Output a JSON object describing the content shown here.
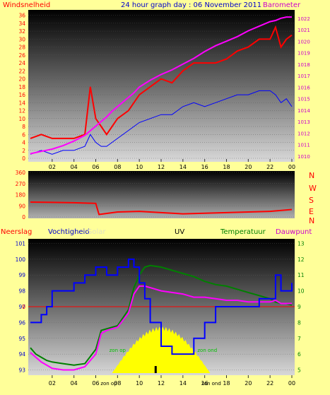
{
  "header": {
    "left_label": "Windsnelheid",
    "title": "24 hour graph day : 06 November 2011",
    "right_label": "Barometer"
  },
  "legend": {
    "rain": "Neerslag",
    "humidity": "Vochtigheid",
    "solar": "Solar",
    "uv": "UV",
    "temperature": "Temperatuur",
    "dewpoint": "Dauwpunt"
  },
  "x_labels": [
    "02",
    "04",
    "06",
    "08",
    "10",
    "12",
    "14",
    "16",
    "18",
    "20",
    "22",
    "00"
  ],
  "colors": {
    "background": "#ffff99",
    "wind_gust": "#ff0000",
    "wind_avg": "#0000ff",
    "barometer": "#ff00ff",
    "direction": "#ff0000",
    "humidity": "#0000ff",
    "temperature": "#008000",
    "dewpoint": "#ff00ff",
    "solar": "#ffff00",
    "uv": "#000000",
    "rain": "#ff0000"
  },
  "chart_data": [
    {
      "type": "line",
      "name": "wind-barometer",
      "title": "24 hour graph day : 06 November 2011",
      "ylabel_left": "Windsnelheid",
      "ylabel_right": "Barometer",
      "y_left_ticks": [
        0,
        2,
        4,
        6,
        8,
        10,
        12,
        14,
        16,
        18,
        20,
        22,
        24,
        26,
        28,
        30,
        32,
        34,
        36
      ],
      "y_right_ticks": [
        1010,
        1011,
        1012,
        1013,
        1014,
        1015,
        1016,
        1017,
        1018,
        1019,
        1020,
        1021,
        1022
      ],
      "ylim_left": [
        0,
        37
      ],
      "ylim_right": [
        1009.8,
        1022.6
      ],
      "x_hours": [
        0,
        1,
        2,
        3,
        4,
        5,
        5.5,
        6,
        6.5,
        7,
        7.5,
        8,
        9,
        9.5,
        10,
        11,
        12,
        13,
        14,
        15,
        16,
        17,
        18,
        19,
        20,
        21,
        22,
        22.5,
        23,
        23.5,
        24
      ],
      "series": [
        {
          "key": "gust",
          "values": [
            5,
            6,
            5,
            5,
            5,
            6,
            18,
            10,
            8,
            6,
            8,
            10,
            12,
            14,
            16,
            18,
            20,
            19,
            22,
            24,
            24,
            24,
            25,
            27,
            28,
            30,
            30,
            33,
            28,
            30,
            31
          ]
        },
        {
          "key": "avg",
          "values": [
            1,
            2,
            1,
            2,
            2,
            3,
            6,
            4,
            3,
            3,
            4,
            5,
            7,
            8,
            9,
            10,
            11,
            11,
            13,
            14,
            13,
            14,
            15,
            16,
            16,
            17,
            17,
            16,
            14,
            15,
            13
          ]
        },
        {
          "key": "baro",
          "values": [
            1010.2,
            1010.4,
            1010.6,
            1010.9,
            1011.3,
            1011.8,
            1012.2,
            1012.6,
            1013,
            1013.4,
            1013.9,
            1014.3,
            1015.1,
            1015.5,
            1016,
            1016.6,
            1017.1,
            1017.5,
            1018,
            1018.5,
            1019.1,
            1019.6,
            1020,
            1020.4,
            1020.9,
            1021.3,
            1021.7,
            1021.8,
            1022,
            1022.1,
            1022.1
          ]
        }
      ]
    },
    {
      "type": "line",
      "name": "wind-direction",
      "y_ticks": [
        0,
        90,
        180,
        270,
        360
      ],
      "compass_labels": [
        "N",
        "W",
        "S",
        "E",
        "N"
      ],
      "ylim": [
        0,
        360
      ],
      "x_hours": [
        0,
        2,
        4,
        6,
        6.3,
        8,
        10,
        12,
        14,
        16,
        18,
        20,
        22,
        24
      ],
      "values": [
        120,
        118,
        115,
        110,
        20,
        40,
        45,
        35,
        25,
        30,
        35,
        40,
        45,
        60
      ]
    },
    {
      "type": "line",
      "name": "humidity-temperature",
      "y_left_ticks": [
        93,
        94,
        95,
        96,
        97,
        98,
        99,
        100,
        101
      ],
      "y_right_ticks": [
        5,
        6,
        7,
        8,
        9,
        10,
        11,
        12,
        13
      ],
      "ylim_left": [
        92.8,
        101.2
      ],
      "ylim_right": [
        4.8,
        13.2
      ],
      "rain_line_value": 0,
      "x_labels_extra": [
        "zon op",
        "zon ond"
      ],
      "x_hours": [
        0,
        0.5,
        1,
        1.5,
        2,
        3,
        4,
        5,
        6,
        6.5,
        7,
        8,
        9,
        9.5,
        10,
        10.5,
        11,
        12,
        13,
        14,
        15,
        16,
        17,
        18,
        19,
        20,
        21,
        22,
        22.5,
        23,
        23.5,
        24
      ],
      "series": [
        {
          "key": "humidity",
          "step": true,
          "values": [
            96,
            96,
            96.5,
            97,
            98,
            98,
            98.5,
            99,
            99.5,
            99.5,
            99,
            99.5,
            100,
            99.5,
            98.5,
            97.5,
            96,
            94.5,
            94,
            94,
            95,
            96,
            97,
            97,
            97,
            97,
            97.5,
            97.5,
            99,
            98,
            98,
            98.5
          ]
        },
        {
          "key": "temperature",
          "values": [
            6.4,
            6,
            5.8,
            5.6,
            5.5,
            5.4,
            5.3,
            5.4,
            6.3,
            7.5,
            7.6,
            7.8,
            8.8,
            10.2,
            11,
            11.5,
            11.6,
            11.5,
            11.3,
            11.1,
            10.9,
            10.6,
            10.4,
            10.3,
            10.1,
            9.9,
            9.7,
            9.5,
            9.3,
            9.2,
            9.2,
            9.1
          ]
        },
        {
          "key": "dewpoint",
          "values": [
            6.1,
            5.8,
            5.5,
            5.3,
            5.1,
            5,
            5,
            5.2,
            6,
            7.3,
            7.5,
            7.7,
            8.6,
            9.8,
            10.3,
            10.3,
            10.2,
            10,
            9.9,
            9.8,
            9.6,
            9.6,
            9.5,
            9.4,
            9.4,
            9.3,
            9.3,
            9.3,
            9.4,
            9.2,
            9.2,
            9.2
          ]
        }
      ],
      "solar": {
        "from_hour": 7.5,
        "to_hour": 16.5,
        "peak_hour": 11.5
      },
      "uv": {
        "hour": 11.5,
        "value": 1
      }
    }
  ]
}
